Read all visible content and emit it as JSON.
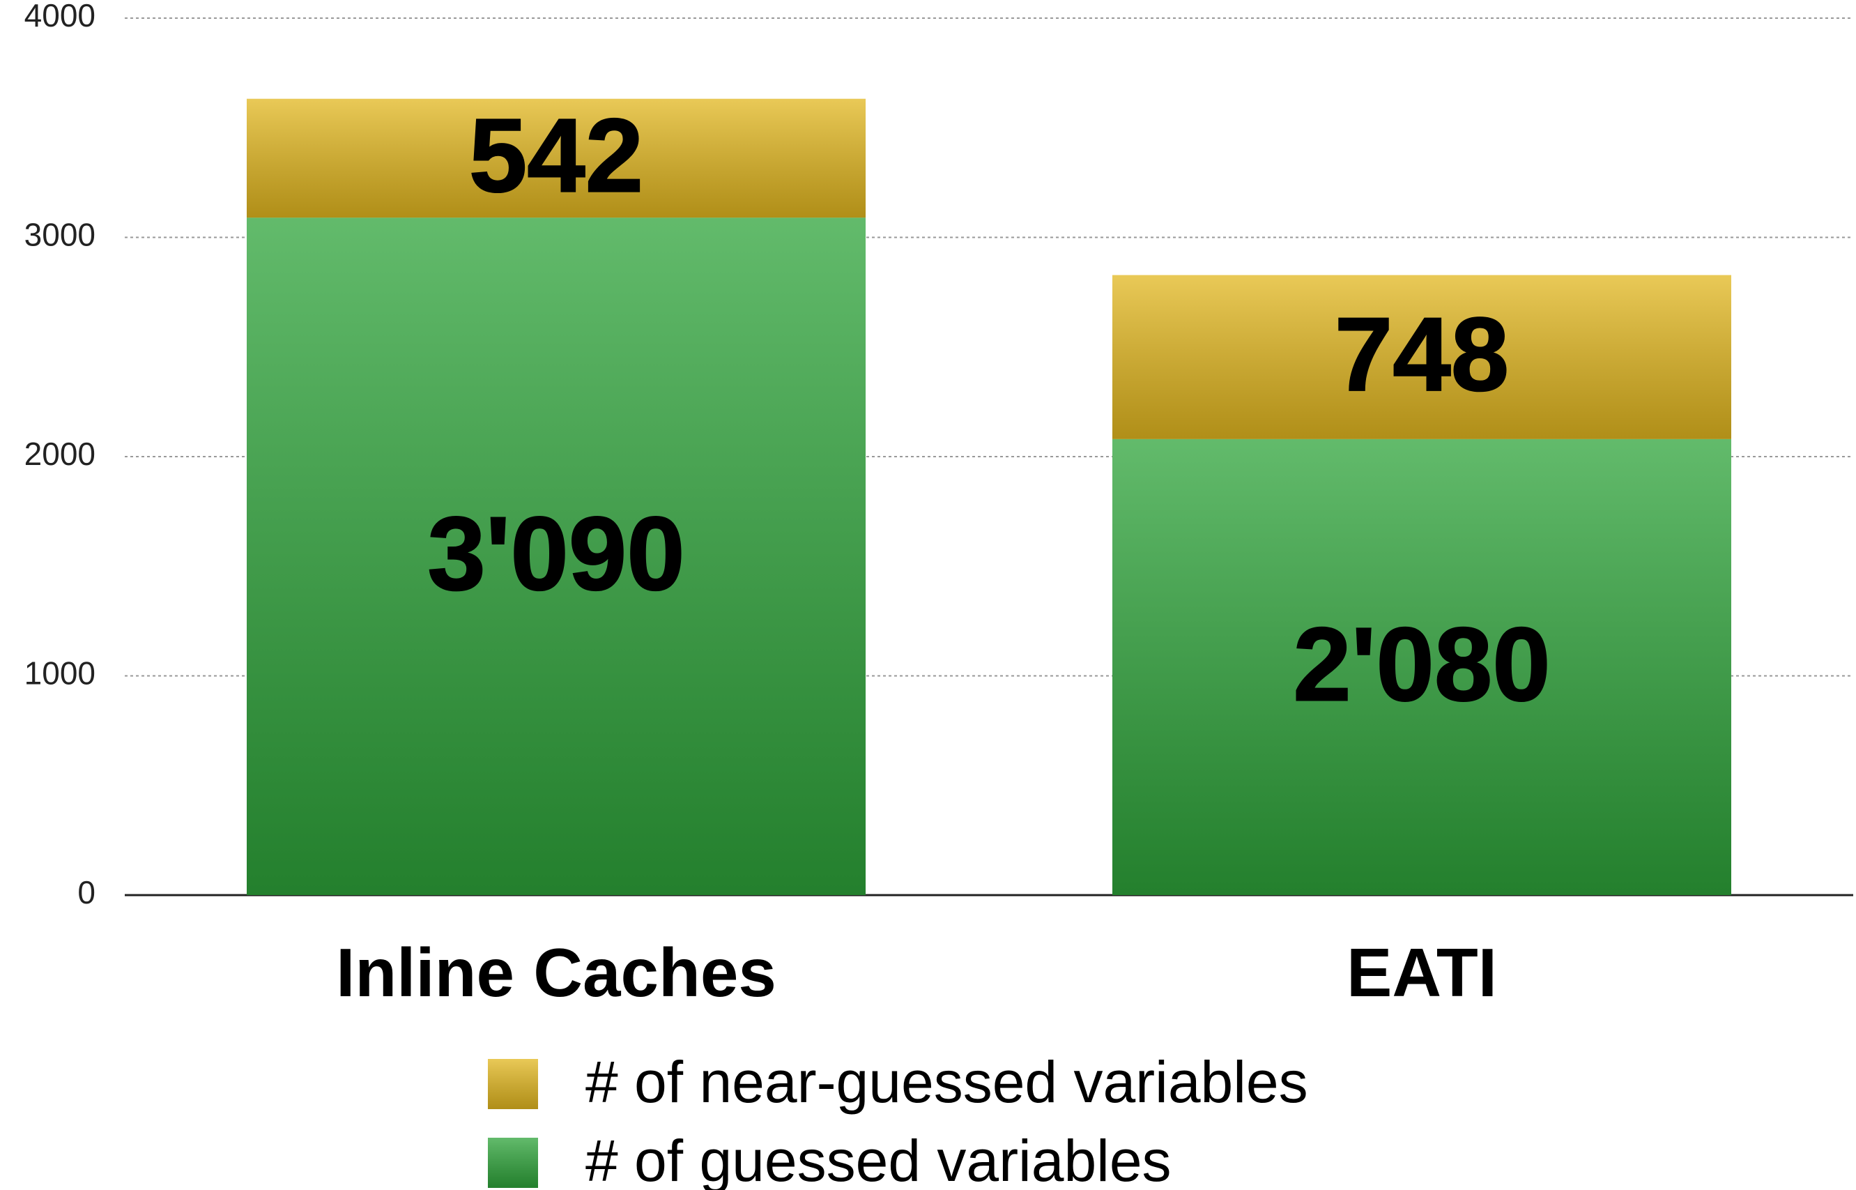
{
  "chart_data": {
    "type": "stacked_bar",
    "categories": [
      "Inline Caches",
      "EATI"
    ],
    "series": [
      {
        "name": "# of guessed variables",
        "color": "#2ea43a",
        "values": [
          3090,
          2080
        ],
        "value_labels": [
          "3'090",
          "2'080"
        ]
      },
      {
        "name": "# of near-guessed variables",
        "color": "#e2b71f",
        "values": [
          542,
          748
        ]
      }
    ],
    "ylim": [
      0,
      4000
    ],
    "yticks": [
      0,
      1000,
      2000,
      3000,
      4000
    ],
    "grid": true
  }
}
